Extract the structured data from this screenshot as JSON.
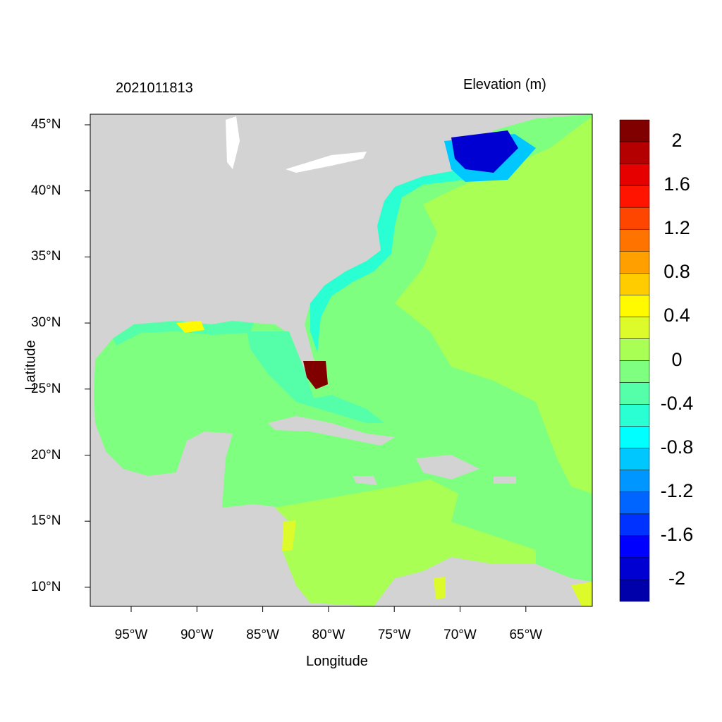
{
  "title_left": "2021011813",
  "title_right": "Elevation (m)",
  "xlabel": "Longitude",
  "ylabel": "Latitude",
  "x_ticks": [
    "95°W",
    "90°W",
    "85°W",
    "80°W",
    "75°W",
    "70°W",
    "65°W"
  ],
  "y_ticks": [
    "45°N",
    "40°N",
    "35°N",
    "30°N",
    "25°N",
    "20°N",
    "15°N",
    "10°N"
  ],
  "extent": {
    "lon": [
      -98.1,
      -60
    ],
    "lat": [
      8.6,
      45.8
    ]
  },
  "colors": {
    "land": "#d3d3d3",
    "ocean_base": "#7fff7f",
    "frame": "#000000"
  },
  "colorbar": {
    "levels_step": 0.2,
    "range": [
      -2.2,
      2.2
    ],
    "labels": [
      "2",
      "1.6",
      "1.2",
      "0.8",
      "0.4",
      "0",
      "-0.4",
      "-0.8",
      "-1.2",
      "-1.6",
      "-2"
    ],
    "bins_top_to_bottom": [
      "#800000",
      "#b40000",
      "#e60000",
      "#ff1400",
      "#ff4600",
      "#ff7300",
      "#ff9f00",
      "#ffcc00",
      "#fffa00",
      "#ddfa2a",
      "#aaff55",
      "#7fff7f",
      "#55ffaa",
      "#2affd4",
      "#00ffff",
      "#00c8ff",
      "#0096ff",
      "#0064ff",
      "#0032ff",
      "#0000ff",
      "#0000d2",
      "#0000aa"
    ]
  }
}
